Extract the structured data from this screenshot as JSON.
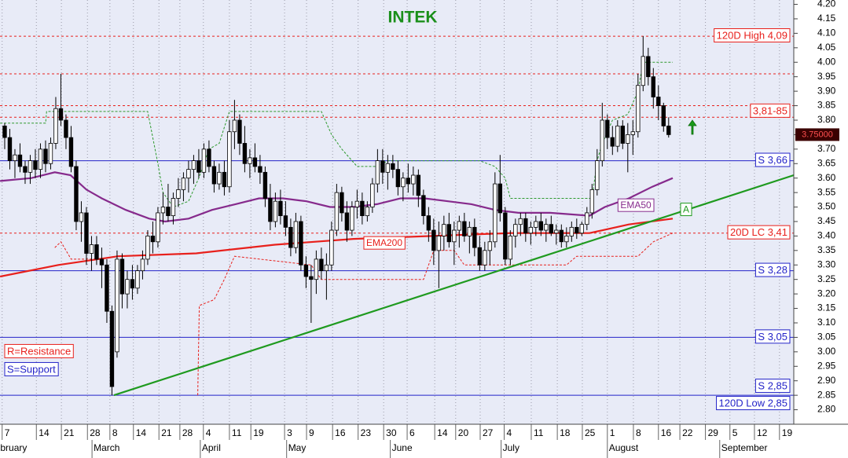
{
  "chart_data": {
    "type": "candlestick",
    "title": "INTEK",
    "xlim": [
      -0.92,
      154.5
    ],
    "ylim": [
      2.75,
      4.215
    ],
    "grid": true,
    "xticks": [
      {
        "value": -0.5,
        "label": "7"
      },
      {
        "value": 6.2,
        "label": "14"
      },
      {
        "value": 11.1,
        "label": "21"
      },
      {
        "value": 16.2,
        "label": "28"
      },
      {
        "value": 20.6,
        "label": "8"
      },
      {
        "value": 25.2,
        "label": "14"
      },
      {
        "value": 30.2,
        "label": "21"
      },
      {
        "value": 34.3,
        "label": "28"
      },
      {
        "value": 38.9,
        "label": "4"
      },
      {
        "value": 44,
        "label": "11"
      },
      {
        "value": 48.2,
        "label": "19"
      },
      {
        "value": 54.8,
        "label": "3"
      },
      {
        "value": 59.1,
        "label": "9"
      },
      {
        "value": 64.2,
        "label": "16"
      },
      {
        "value": 69.2,
        "label": "23"
      },
      {
        "value": 74.2,
        "label": "30"
      },
      {
        "value": 78.8,
        "label": "6"
      },
      {
        "value": 84.2,
        "label": "14"
      },
      {
        "value": 88.3,
        "label": "20"
      },
      {
        "value": 93.1,
        "label": "27"
      },
      {
        "value": 97.8,
        "label": "4"
      },
      {
        "value": 103.1,
        "label": "11"
      },
      {
        "value": 108.2,
        "label": "18"
      },
      {
        "value": 113.1,
        "label": "25"
      },
      {
        "value": 118,
        "label": "1"
      },
      {
        "value": 123.1,
        "label": "8"
      },
      {
        "value": 128,
        "label": "16"
      },
      {
        "value": 132.2,
        "label": "22"
      },
      {
        "value": 137.2,
        "label": "29"
      },
      {
        "value": 142,
        "label": "5"
      },
      {
        "value": 146.8,
        "label": "12"
      },
      {
        "value": 151.7,
        "label": "19"
      }
    ],
    "month_ticks": [
      {
        "value": -2.2,
        "label": "ebruary"
      },
      {
        "value": 17.1,
        "label": "March"
      },
      {
        "value": 38.3,
        "label": "April"
      },
      {
        "value": 55.2,
        "label": "May"
      },
      {
        "value": 75.5,
        "label": "June"
      },
      {
        "value": 97.2,
        "label": "July"
      },
      {
        "value": 118,
        "label": "August"
      },
      {
        "value": 140,
        "label": "September"
      }
    ],
    "yticks": [
      {
        "value": 2.8,
        "label": "2.80"
      },
      {
        "value": 2.85,
        "label": "2.85"
      },
      {
        "value": 2.9,
        "label": "2.90"
      },
      {
        "value": 2.95,
        "label": "2.95"
      },
      {
        "value": 3.0,
        "label": "3.00"
      },
      {
        "value": 3.05,
        "label": "3.05"
      },
      {
        "value": 3.1,
        "label": "3.10"
      },
      {
        "value": 3.15,
        "label": "3.15"
      },
      {
        "value": 3.2,
        "label": "3.20"
      },
      {
        "value": 3.25,
        "label": "3.25"
      },
      {
        "value": 3.3,
        "label": "3.30"
      },
      {
        "value": 3.35,
        "label": "3.35"
      },
      {
        "value": 3.4,
        "label": "3.40"
      },
      {
        "value": 3.45,
        "label": "3.45"
      },
      {
        "value": 3.5,
        "label": "3.50"
      },
      {
        "value": 3.55,
        "label": "3.55"
      },
      {
        "value": 3.6,
        "label": "3.60"
      },
      {
        "value": 3.65,
        "label": "3.65"
      },
      {
        "value": 3.7,
        "label": "3.70"
      },
      {
        "value": 3.75,
        "label": "3.75"
      },
      {
        "value": 3.8,
        "label": "3.80"
      },
      {
        "value": 3.85,
        "label": "3.85"
      },
      {
        "value": 3.9,
        "label": "3.90"
      },
      {
        "value": 3.95,
        "label": "3.95"
      },
      {
        "value": 4.0,
        "label": "4.00"
      },
      {
        "value": 4.05,
        "label": "4.05"
      },
      {
        "value": 4.1,
        "label": "4.10"
      },
      {
        "value": 4.15,
        "label": "4.15"
      },
      {
        "value": 4.2,
        "label": "4.20"
      }
    ],
    "candles": {
      "x": [
        0,
        1,
        2,
        3,
        4,
        5,
        6,
        7,
        8,
        9,
        10,
        11,
        12,
        13,
        14,
        15,
        16,
        17,
        18,
        19,
        20,
        21,
        22,
        23,
        24,
        25,
        26,
        27,
        28,
        29,
        30,
        31,
        32,
        33,
        34,
        35,
        36,
        37,
        38,
        39,
        40,
        41,
        42,
        43,
        44,
        45,
        46,
        47,
        48,
        49,
        50,
        51,
        52,
        53,
        54,
        55,
        56,
        57,
        58,
        59,
        60,
        61,
        62,
        63,
        64,
        65,
        66,
        67,
        68,
        69,
        70,
        71,
        72,
        73,
        74,
        75,
        76,
        77,
        78,
        79,
        80,
        81,
        82,
        83,
        84,
        85,
        86,
        87,
        88,
        89,
        90,
        91,
        92,
        93,
        94,
        95,
        96,
        97,
        98,
        99,
        100,
        101,
        102,
        103,
        104,
        105,
        106,
        107,
        108,
        109,
        110,
        111,
        112,
        113,
        114,
        115,
        116,
        117,
        118,
        119,
        120,
        121,
        122,
        123,
        124,
        125,
        126,
        127,
        128,
        129,
        130
      ],
      "open": [
        3.78,
        3.74,
        3.66,
        3.68,
        3.64,
        3.62,
        3.66,
        3.63,
        3.7,
        3.65,
        3.72,
        3.84,
        3.8,
        3.74,
        3.64,
        3.45,
        3.48,
        3.34,
        3.37,
        3.32,
        3.3,
        3.14,
        3.0,
        3.32,
        3.2,
        3.25,
        3.22,
        3.28,
        3.32,
        3.4,
        3.38,
        3.48,
        3.5,
        3.47,
        3.53,
        3.56,
        3.6,
        3.63,
        3.66,
        3.62,
        3.7,
        3.64,
        3.58,
        3.62,
        3.57,
        3.76,
        3.8,
        3.72,
        3.65,
        3.67,
        3.64,
        3.62,
        3.53,
        3.45,
        3.52,
        3.47,
        3.43,
        3.36,
        3.45,
        3.3,
        3.26,
        3.25,
        3.32,
        3.28,
        3.3,
        3.42,
        3.55,
        3.48,
        3.42,
        3.5,
        3.52,
        3.47,
        3.5,
        3.58,
        3.66,
        3.62,
        3.65,
        3.63,
        3.57,
        3.6,
        3.58,
        3.61,
        3.54,
        3.47,
        3.42,
        3.35,
        3.4,
        3.44,
        3.38,
        3.42,
        3.45,
        3.4,
        3.43,
        3.36,
        3.3,
        3.35,
        3.38,
        3.58,
        3.48,
        3.32,
        3.4,
        3.44,
        3.46,
        3.41,
        3.43,
        3.45,
        3.42,
        3.44,
        3.41,
        3.42,
        3.38,
        3.4,
        3.43,
        3.41,
        3.44,
        3.48,
        3.56,
        3.66,
        3.8,
        3.74,
        3.71,
        3.78,
        3.72,
        3.75,
        3.76,
        3.92,
        4.02,
        3.95,
        3.88,
        3.85,
        3.78
      ],
      "high": [
        3.79,
        3.77,
        3.7,
        3.72,
        3.66,
        3.68,
        3.7,
        3.72,
        3.73,
        3.74,
        3.88,
        3.96,
        3.82,
        3.78,
        3.66,
        3.52,
        3.5,
        3.4,
        3.4,
        3.36,
        3.32,
        3.16,
        3.35,
        3.34,
        3.28,
        3.3,
        3.3,
        3.35,
        3.42,
        3.45,
        3.5,
        3.55,
        3.58,
        3.55,
        3.6,
        3.62,
        3.66,
        3.68,
        3.7,
        3.72,
        3.73,
        3.66,
        3.65,
        3.66,
        3.8,
        3.87,
        3.82,
        3.78,
        3.7,
        3.72,
        3.68,
        3.64,
        3.58,
        3.55,
        3.56,
        3.52,
        3.46,
        3.48,
        3.47,
        3.33,
        3.3,
        3.35,
        3.36,
        3.34,
        3.45,
        3.58,
        3.57,
        3.52,
        3.52,
        3.56,
        3.55,
        3.52,
        3.6,
        3.7,
        3.7,
        3.68,
        3.68,
        3.66,
        3.62,
        3.65,
        3.64,
        3.63,
        3.56,
        3.5,
        3.46,
        3.45,
        3.47,
        3.48,
        3.45,
        3.47,
        3.48,
        3.45,
        3.46,
        3.4,
        3.38,
        3.42,
        3.62,
        3.68,
        3.5,
        3.42,
        3.46,
        3.48,
        3.48,
        3.45,
        3.47,
        3.48,
        3.46,
        3.47,
        3.44,
        3.44,
        3.43,
        3.45,
        3.46,
        3.45,
        3.5,
        3.58,
        3.7,
        3.86,
        3.82,
        3.78,
        3.8,
        3.8,
        3.79,
        3.8,
        3.96,
        4.09,
        4.05,
        3.98,
        3.92,
        3.86,
        3.81
      ],
      "low": [
        3.7,
        3.63,
        3.6,
        3.62,
        3.58,
        3.58,
        3.6,
        3.6,
        3.62,
        3.63,
        3.7,
        3.78,
        3.7,
        3.62,
        3.42,
        3.38,
        3.3,
        3.28,
        3.3,
        3.22,
        3.1,
        2.85,
        2.98,
        3.15,
        3.15,
        3.18,
        3.2,
        3.25,
        3.3,
        3.34,
        3.36,
        3.44,
        3.45,
        3.44,
        3.5,
        3.52,
        3.55,
        3.58,
        3.6,
        3.6,
        3.62,
        3.55,
        3.56,
        3.54,
        3.55,
        3.7,
        3.68,
        3.62,
        3.6,
        3.62,
        3.58,
        3.5,
        3.42,
        3.43,
        3.44,
        3.4,
        3.33,
        3.34,
        3.28,
        3.22,
        3.1,
        3.2,
        3.25,
        3.18,
        3.28,
        3.4,
        3.45,
        3.38,
        3.4,
        3.46,
        3.44,
        3.45,
        3.48,
        3.55,
        3.58,
        3.56,
        3.6,
        3.54,
        3.52,
        3.55,
        3.54,
        3.5,
        3.44,
        3.38,
        3.3,
        3.22,
        3.35,
        3.36,
        3.3,
        3.36,
        3.38,
        3.34,
        3.33,
        3.28,
        3.28,
        3.3,
        3.36,
        3.45,
        3.3,
        3.3,
        3.36,
        3.4,
        3.38,
        3.37,
        3.4,
        3.4,
        3.38,
        3.4,
        3.37,
        3.36,
        3.36,
        3.38,
        3.39,
        3.4,
        3.42,
        3.46,
        3.54,
        3.64,
        3.7,
        3.68,
        3.69,
        3.7,
        3.62,
        3.68,
        3.74,
        3.9,
        3.92,
        3.84,
        3.8,
        3.76,
        3.74
      ],
      "close": [
        3.74,
        3.66,
        3.68,
        3.64,
        3.62,
        3.66,
        3.63,
        3.7,
        3.65,
        3.72,
        3.84,
        3.8,
        3.74,
        3.64,
        3.45,
        3.48,
        3.34,
        3.37,
        3.32,
        3.3,
        3.14,
        2.88,
        3.32,
        3.2,
        3.25,
        3.22,
        3.28,
        3.32,
        3.4,
        3.38,
        3.48,
        3.5,
        3.47,
        3.53,
        3.56,
        3.6,
        3.63,
        3.66,
        3.62,
        3.7,
        3.64,
        3.58,
        3.62,
        3.57,
        3.76,
        3.8,
        3.72,
        3.65,
        3.67,
        3.64,
        3.62,
        3.53,
        3.45,
        3.52,
        3.47,
        3.43,
        3.36,
        3.45,
        3.3,
        3.26,
        3.25,
        3.32,
        3.28,
        3.3,
        3.42,
        3.55,
        3.48,
        3.42,
        3.5,
        3.52,
        3.47,
        3.5,
        3.58,
        3.66,
        3.62,
        3.65,
        3.63,
        3.57,
        3.6,
        3.58,
        3.61,
        3.54,
        3.47,
        3.42,
        3.35,
        3.4,
        3.44,
        3.38,
        3.42,
        3.45,
        3.4,
        3.43,
        3.36,
        3.3,
        3.35,
        3.38,
        3.58,
        3.48,
        3.32,
        3.4,
        3.44,
        3.46,
        3.41,
        3.43,
        3.45,
        3.42,
        3.44,
        3.41,
        3.42,
        3.38,
        3.4,
        3.43,
        3.41,
        3.44,
        3.48,
        3.56,
        3.66,
        3.8,
        3.74,
        3.71,
        3.78,
        3.72,
        3.75,
        3.76,
        3.92,
        4.02,
        3.95,
        3.88,
        3.85,
        3.78,
        3.75
      ]
    },
    "series": [
      {
        "name": "EMA50",
        "color": "#862a8c",
        "style": "solid",
        "x": [
          -0.9,
          5.2,
          9.8,
          12.9,
          16,
          19,
          23.7,
          28.3,
          31.4,
          36,
          40.6,
          45.2,
          49.8,
          54.5,
          59.1,
          63.7,
          68.3,
          72.9,
          77.5,
          82.2,
          86.8,
          91.4,
          96,
          100.6,
          106.8,
          114.5,
          117.5,
          122.2,
          126.8,
          130.8
        ],
        "values": [
          3.59,
          3.6,
          3.62,
          3.61,
          3.56,
          3.53,
          3.49,
          3.46,
          3.45,
          3.46,
          3.49,
          3.51,
          3.53,
          3.53,
          3.52,
          3.5,
          3.5,
          3.51,
          3.53,
          3.53,
          3.52,
          3.51,
          3.49,
          3.48,
          3.48,
          3.47,
          3.5,
          3.53,
          3.57,
          3.6
        ]
      },
      {
        "name": "EMA200",
        "color": "#e8201c",
        "style": "solid",
        "x": [
          -0.9,
          10.5,
          22.2,
          37.5,
          52.9,
          68.3,
          83.7,
          99,
          114.5,
          122.2,
          130.8
        ],
        "values": [
          3.26,
          3.3,
          3.33,
          3.34,
          3.37,
          3.39,
          3.4,
          3.41,
          3.41,
          3.44,
          3.46
        ]
      },
      {
        "color": "#2e9a2e",
        "style": "dashed",
        "x": [
          -0.9,
          8,
          8.2,
          28,
          30,
          31,
          33,
          36,
          38,
          40,
          42,
          44,
          62,
          64,
          66,
          69,
          73,
          75,
          91,
          93,
          96,
          98,
          99,
          115,
          116,
          117,
          119,
          122,
          124,
          125,
          130.8
        ],
        "values": [
          3.79,
          3.79,
          3.83,
          3.83,
          3.65,
          3.55,
          3.5,
          3.52,
          3.6,
          3.7,
          3.72,
          3.83,
          3.83,
          3.75,
          3.7,
          3.64,
          3.64,
          3.66,
          3.66,
          3.66,
          3.64,
          3.6,
          3.53,
          3.53,
          3.66,
          3.72,
          3.8,
          3.82,
          3.9,
          4.0,
          4.0
        ]
      },
      {
        "color": "#e8201c",
        "style": "dashed",
        "x": [
          9.8,
          11,
          13,
          19,
          20,
          37.8,
          38.1,
          41,
          43,
          45,
          60,
          62,
          82,
          84,
          88,
          90,
          110,
          112,
          124,
          127,
          130.8
        ],
        "values": [
          3.36,
          3.38,
          3.32,
          3.32,
          null,
          2.85,
          3.16,
          3.18,
          3.25,
          3.33,
          3.3,
          3.25,
          3.25,
          3.35,
          3.35,
          3.3,
          3.3,
          3.33,
          3.33,
          3.38,
          3.41
        ]
      }
    ],
    "trendline": {
      "label": "A",
      "color": "#1f9a1f",
      "x": [
        21.4,
        154.5
      ],
      "values": [
        2.85,
        3.61
      ]
    },
    "levels": [
      {
        "kind": "resistance",
        "values": [
          4.09
        ],
        "labels": [
          "120D High 4,09"
        ]
      },
      {
        "kind": "resistance",
        "values": [
          3.96
        ],
        "labels": []
      },
      {
        "kind": "resistance",
        "values": [
          3.85,
          3.81
        ],
        "labels": [
          "3,81-85"
        ]
      },
      {
        "kind": "support",
        "values": [
          3.66
        ],
        "labels": [
          "S 3,66"
        ]
      },
      {
        "kind": "resistance",
        "values": [
          3.41
        ],
        "labels": [
          "20D LC 3,41"
        ]
      },
      {
        "kind": "support",
        "values": [
          3.28
        ],
        "labels": [
          "S 3,28"
        ]
      },
      {
        "kind": "support",
        "values": [
          3.05
        ],
        "labels": [
          "S 3,05"
        ]
      },
      {
        "kind": "support",
        "values": [
          2.85
        ],
        "labels": [
          "S 2,85",
          "120D Low 2,85"
        ]
      }
    ],
    "legend": [
      {
        "kind": "resistance",
        "label": "R=Resistance"
      },
      {
        "kind": "support",
        "label": "S=Support"
      }
    ],
    "last_price": {
      "value": 3.75,
      "label": "3.75000"
    }
  }
}
